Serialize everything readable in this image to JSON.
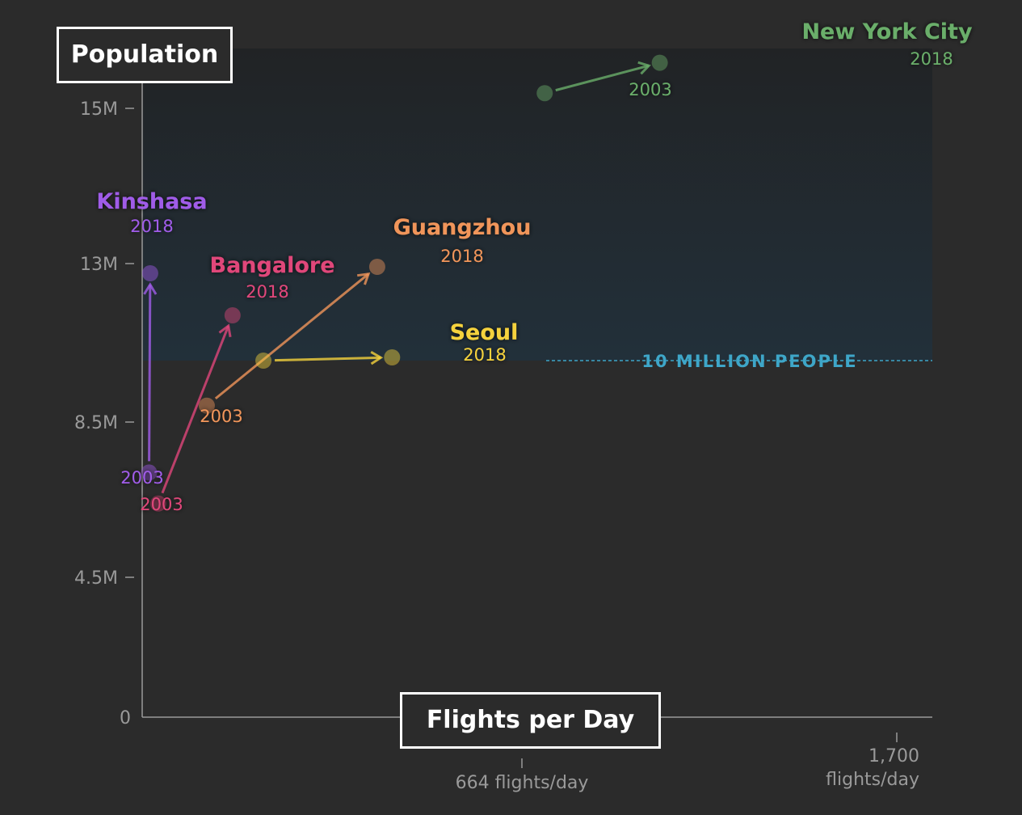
{
  "chart_data": {
    "type": "scatter",
    "title": "",
    "ylabel": "Population",
    "xlabel": "Flights per Day",
    "yticks": [
      {
        "value": 15000000,
        "label": "15M"
      },
      {
        "value": 13000000,
        "label": "13M"
      },
      {
        "value": 8500000,
        "label": "8.5M"
      },
      {
        "value": 4500000,
        "label": "4.5M"
      },
      {
        "value": 0,
        "label": "0"
      }
    ],
    "xticks": [
      {
        "value": 664,
        "label": "664 flights/day"
      },
      {
        "value": 1700,
        "label": "1,700 flights/day"
      }
    ],
    "reference_line": {
      "value": 10000000,
      "label": "10 MILLION PEOPLE"
    },
    "series": [
      {
        "name": "Kinshasa",
        "color": "#a05ce8",
        "points": [
          {
            "label": "2003",
            "x": 12,
            "y": 7200000
          },
          {
            "label": "2018",
            "x": 14,
            "y": 12700000
          }
        ]
      },
      {
        "name": "Bangalore",
        "color": "#e0467a",
        "points": [
          {
            "label": "2003",
            "x": 28,
            "y": 6400000
          },
          {
            "label": "2018",
            "x": 158,
            "y": 11400000
          }
        ]
      },
      {
        "name": "Guangzhou",
        "color": "#f0955a",
        "points": [
          {
            "label": "2003",
            "x": 113,
            "y": 8900000
          },
          {
            "label": "2018",
            "x": 411,
            "y": 12900000
          }
        ]
      },
      {
        "name": "Seoul",
        "color": "#f5d23c",
        "points": [
          {
            "label": "2003",
            "x": 212,
            "y": 10000000
          },
          {
            "label": "2018",
            "x": 437,
            "y": 10100000
          }
        ]
      },
      {
        "name": "New York City",
        "color": "#6aae6a",
        "points": [
          {
            "label": "2003",
            "x": 727,
            "y": 15300000
          },
          {
            "label": "2018",
            "x": 1045,
            "y": 15900000
          }
        ]
      }
    ]
  }
}
